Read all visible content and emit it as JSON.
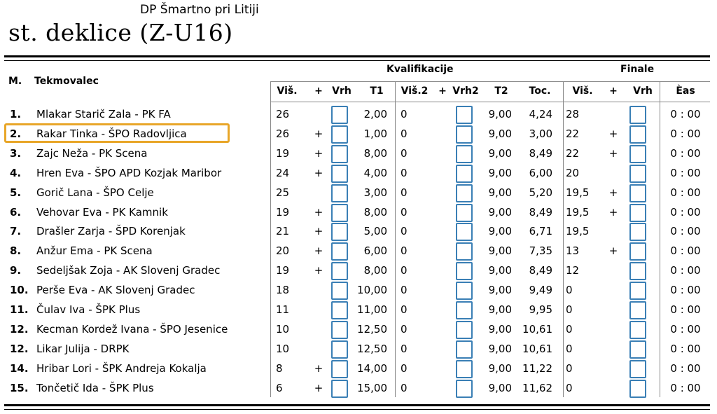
{
  "event": "DP Šmartno pri Litiji",
  "category": "st. deklice (Z-U16)",
  "headers": {
    "rank": "M.",
    "competitor": "Tekmovalec",
    "qualification": "Kvalifikacije",
    "final": "Finale",
    "height": "Viš.",
    "plus": "+",
    "top": "Vrh",
    "t1": "T1",
    "height2": "Viš.2",
    "top2": "Vrh2",
    "t2": "T2",
    "points": "Toc.",
    "final_height": "Viš.",
    "final_plus": "+",
    "final_top": "Vrh",
    "time": "Èas"
  },
  "selected_row": 1,
  "rows": [
    {
      "rank": "1.",
      "name": "Mlakar Starič Zala - PK FA",
      "h": "26",
      "p": "",
      "t1": "2,00",
      "h2": "0",
      "p2": "",
      "t2": "9,00",
      "toc": "4,24",
      "fh": "28",
      "fp": "",
      "time": "0 : 00"
    },
    {
      "rank": "2.",
      "name": "Rakar Tinka - ŠPO Radovljica",
      "h": "26",
      "p": "+",
      "t1": "1,00",
      "h2": "0",
      "p2": "",
      "t2": "9,00",
      "toc": "3,00",
      "fh": "22",
      "fp": "+",
      "time": "0 : 00"
    },
    {
      "rank": "3.",
      "name": "Zajc Neža - PK Scena",
      "h": "19",
      "p": "+",
      "t1": "8,00",
      "h2": "0",
      "p2": "",
      "t2": "9,00",
      "toc": "8,49",
      "fh": "22",
      "fp": "+",
      "time": "0 : 00"
    },
    {
      "rank": "4.",
      "name": "Hren Eva - ŠPO APD Kozjak Maribor",
      "h": "24",
      "p": "+",
      "t1": "4,00",
      "h2": "0",
      "p2": "",
      "t2": "9,00",
      "toc": "6,00",
      "fh": "20",
      "fp": "",
      "time": "0 : 00"
    },
    {
      "rank": "5.",
      "name": "Gorič Lana - ŠPO Celje",
      "h": "25",
      "p": "",
      "t1": "3,00",
      "h2": "0",
      "p2": "",
      "t2": "9,00",
      "toc": "5,20",
      "fh": "19,5",
      "fp": "+",
      "time": "0 : 00"
    },
    {
      "rank": "6.",
      "name": "Vehovar Eva - PK Kamnik",
      "h": "19",
      "p": "+",
      "t1": "8,00",
      "h2": "0",
      "p2": "",
      "t2": "9,00",
      "toc": "8,49",
      "fh": "19,5",
      "fp": "+",
      "time": "0 : 00"
    },
    {
      "rank": "7.",
      "name": "Drašler Zarja - ŠPD Korenjak",
      "h": "21",
      "p": "+",
      "t1": "5,00",
      "h2": "0",
      "p2": "",
      "t2": "9,00",
      "toc": "6,71",
      "fh": "19,5",
      "fp": "",
      "time": "0 : 00"
    },
    {
      "rank": "8.",
      "name": "Anžur Ema - PK Scena",
      "h": "20",
      "p": "+",
      "t1": "6,00",
      "h2": "0",
      "p2": "",
      "t2": "9,00",
      "toc": "7,35",
      "fh": "13",
      "fp": "+",
      "time": "0 : 00"
    },
    {
      "rank": "9.",
      "name": "Sedeljšak Zoja  - AK Slovenj Gradec",
      "h": "19",
      "p": "+",
      "t1": "8,00",
      "h2": "0",
      "p2": "",
      "t2": "9,00",
      "toc": "8,49",
      "fh": "12",
      "fp": "",
      "time": "0 : 00"
    },
    {
      "rank": "10.",
      "name": "Perše Eva - AK Slovenj Gradec",
      "h": "18",
      "p": "",
      "t1": "10,00",
      "h2": "0",
      "p2": "",
      "t2": "9,00",
      "toc": "9,49",
      "fh": "0",
      "fp": "",
      "time": "0 : 00"
    },
    {
      "rank": "11.",
      "name": "Čulav Iva - ŠPK Plus",
      "h": "11",
      "p": "",
      "t1": "11,00",
      "h2": "0",
      "p2": "",
      "t2": "9,00",
      "toc": "9,95",
      "fh": "0",
      "fp": "",
      "time": "0 : 00"
    },
    {
      "rank": "12.",
      "name": "Kecman Kordež Ivana - ŠPO Jesenice",
      "h": "10",
      "p": "",
      "t1": "12,50",
      "h2": "0",
      "p2": "",
      "t2": "9,00",
      "toc": "10,61",
      "fh": "0",
      "fp": "",
      "time": "0 : 00"
    },
    {
      "rank": "12.",
      "name": "Likar Julija - DRPK",
      "h": "10",
      "p": "",
      "t1": "12,50",
      "h2": "0",
      "p2": "",
      "t2": "9,00",
      "toc": "10,61",
      "fh": "0",
      "fp": "",
      "time": "0 : 00"
    },
    {
      "rank": "14.",
      "name": "Hribar Lori - ŠPK Andreja Kokalja",
      "h": "8",
      "p": "+",
      "t1": "14,00",
      "h2": "0",
      "p2": "",
      "t2": "9,00",
      "toc": "11,22",
      "fh": "0",
      "fp": "",
      "time": "0 : 00"
    },
    {
      "rank": "15.",
      "name": "Tončetič Ida - ŠPK Plus",
      "h": "6",
      "p": "+",
      "t1": "15,00",
      "h2": "0",
      "p2": "",
      "t2": "9,00",
      "toc": "11,62",
      "fh": "0",
      "fp": "",
      "time": "0 : 00"
    }
  ]
}
